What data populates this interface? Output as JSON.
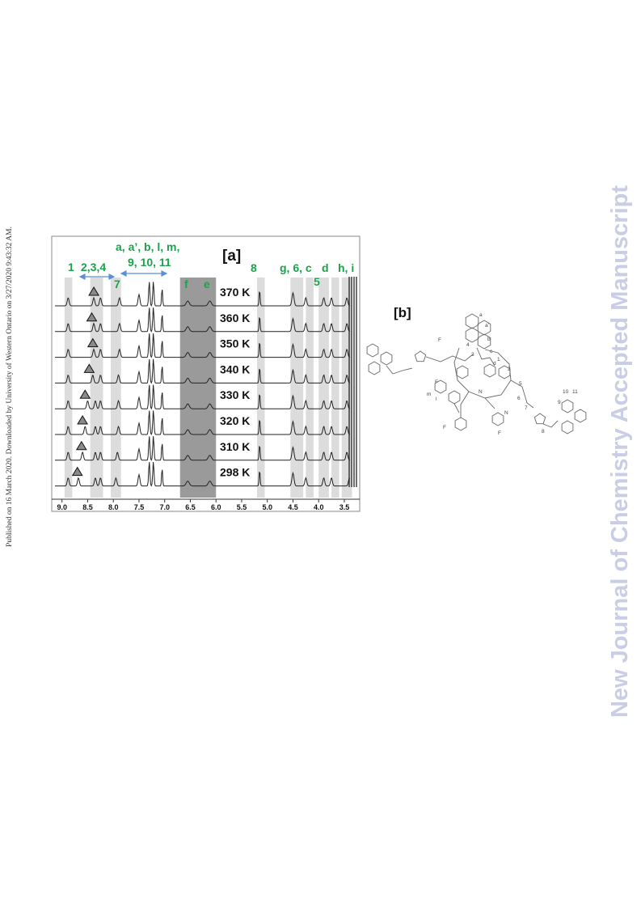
{
  "side_note": "Published on 16 March 2020. Downloaded by University of Western Ontario on 3/27/2020 9:43:32 AM.",
  "watermark": "New Journal of Chemistry Accepted Manuscript",
  "panel_a": {
    "label": "[a]",
    "peak_labels": {
      "p1": "1",
      "p234": "2,3,4",
      "p7": "7",
      "aromatic_line1": "a, a’, b, l, m,",
      "aromatic_line2": "9, 10, 11",
      "f": "f",
      "e": "e",
      "p8": "8",
      "g6c": "g, 6, c",
      "p5": "5",
      "d": "d",
      "hi": "h, i"
    },
    "temperatures": [
      "370 K",
      "360 K",
      "350 K",
      "340 K",
      "330 K",
      "320 K",
      "310 K",
      "298 K"
    ],
    "x_ticks": [
      "9.0",
      "8.5",
      "8.0",
      "7.5",
      "7.0",
      "6.5",
      "6.0",
      "5.5",
      "5.0",
      "4.5",
      "4.0",
      "3.5"
    ],
    "label_color": "#1aa34a",
    "arrow_color": "#5b8fd6"
  },
  "panel_b": {
    "label": "[b]",
    "atom_labels": [
      "a",
      "a’",
      "b",
      "c",
      "d",
      "1",
      "2",
      "3",
      "4",
      "5",
      "6",
      "7",
      "8",
      "9",
      "10",
      "11",
      "l",
      "m",
      "F",
      "F",
      "F",
      "F",
      "N",
      "N"
    ]
  },
  "chart_data": {
    "type": "line",
    "title": "",
    "xlabel": "",
    "ylabel": "",
    "xlim": [
      9.2,
      3.2
    ],
    "x_axis_reversed": true,
    "x_ticks": [
      9.0,
      8.5,
      8.0,
      7.5,
      7.0,
      6.5,
      6.0,
      5.5,
      5.0,
      4.5,
      4.0,
      3.5
    ],
    "series": [
      {
        "name": "370 K",
        "peaks_ppm": [
          8.88,
          8.38,
          8.25,
          7.88,
          7.5,
          7.3,
          7.22,
          7.05,
          6.55,
          6.12,
          5.15,
          4.5,
          4.25,
          3.9,
          3.75,
          3.45
        ]
      },
      {
        "name": "360 K",
        "peaks_ppm": [
          8.88,
          8.38,
          8.25,
          7.88,
          7.5,
          7.3,
          7.22,
          7.05,
          6.55,
          6.12,
          5.15,
          4.5,
          4.25,
          3.9,
          3.75,
          3.45
        ]
      },
      {
        "name": "350 K",
        "peaks_ppm": [
          8.88,
          8.38,
          8.25,
          7.88,
          7.5,
          7.3,
          7.22,
          7.05,
          6.55,
          6.12,
          5.15,
          4.5,
          4.25,
          3.9,
          3.75,
          3.45
        ]
      },
      {
        "name": "340 K",
        "peaks_ppm": [
          8.88,
          8.4,
          8.25,
          7.9,
          7.5,
          7.3,
          7.22,
          7.05,
          6.55,
          6.12,
          5.15,
          4.5,
          4.25,
          3.9,
          3.75,
          3.45
        ]
      },
      {
        "name": "330 K",
        "peaks_ppm": [
          8.88,
          8.5,
          8.35,
          8.25,
          7.9,
          7.5,
          7.3,
          7.22,
          7.05,
          6.55,
          6.12,
          5.15,
          4.5,
          4.25,
          3.9,
          3.75,
          3.45
        ]
      },
      {
        "name": "320 K",
        "peaks_ppm": [
          8.88,
          8.55,
          8.35,
          8.25,
          7.9,
          7.5,
          7.3,
          7.22,
          7.05,
          6.55,
          6.12,
          5.15,
          4.5,
          4.25,
          3.9,
          3.75,
          3.45
        ]
      },
      {
        "name": "310 K",
        "peaks_ppm": [
          8.88,
          8.6,
          8.35,
          8.25,
          7.92,
          7.5,
          7.3,
          7.22,
          7.05,
          6.55,
          6.12,
          5.15,
          4.5,
          4.25,
          3.9,
          3.75,
          3.45
        ]
      },
      {
        "name": "298 K",
        "peaks_ppm": [
          8.88,
          8.68,
          8.35,
          8.25,
          7.95,
          7.5,
          7.3,
          7.22,
          7.05,
          6.55,
          6.12,
          5.15,
          4.5,
          4.25,
          3.9,
          3.75,
          3.4
        ]
      }
    ],
    "shaded_regions_ppm": [
      [
        8.95,
        8.8
      ],
      [
        8.45,
        8.2
      ],
      [
        8.05,
        7.85
      ],
      [
        6.7,
        6.0
      ],
      [
        5.2,
        5.05
      ],
      [
        4.55,
        4.3
      ],
      [
        4.25,
        4.1
      ],
      [
        4.0,
        3.8
      ],
      [
        3.75,
        3.6
      ],
      [
        3.55,
        3.35
      ]
    ],
    "triangle_markers_ppm": [
      8.38,
      8.42,
      8.4,
      8.47,
      8.55,
      8.6,
      8.62,
      8.7
    ]
  }
}
